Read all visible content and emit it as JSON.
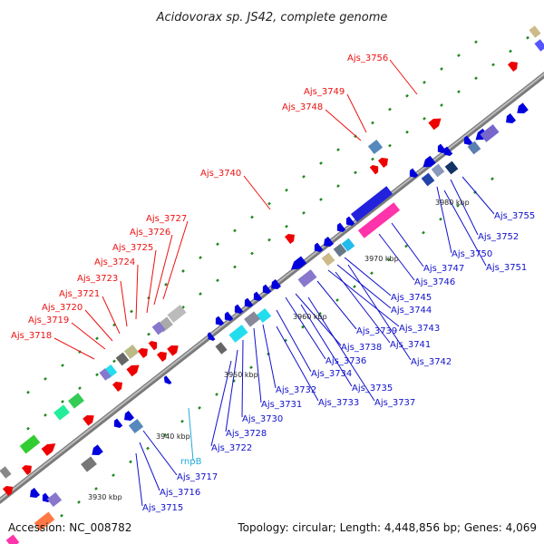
{
  "header": {
    "title": "Acidovorax sp. JS42, complete genome"
  },
  "footer": {
    "accession": "Accession: NC_008782",
    "summary": "Topology: circular; Length: 4,448,856 bp; Genes: 4,069"
  },
  "scale_labels": [
    "3930 kbp",
    "3940 kbp",
    "3950 kbp",
    "3960 kbp",
    "3970 kbp",
    "3980 kbp"
  ],
  "red_labels": [
    "Ajs_3756",
    "Ajs_3749",
    "Ajs_3748",
    "Ajs_3740",
    "Ajs_3727",
    "Ajs_3726",
    "Ajs_3725",
    "Ajs_3724",
    "Ajs_3723",
    "Ajs_3721",
    "Ajs_3720",
    "Ajs_3719",
    "Ajs_3718"
  ],
  "blue_labels": [
    "Ajs_3755",
    "Ajs_3752",
    "Ajs_3750",
    "Ajs_3751",
    "Ajs_3747",
    "Ajs_3746",
    "Ajs_3745",
    "Ajs_3744",
    "Ajs_3743",
    "Ajs_3739",
    "Ajs_3741",
    "Ajs_3738",
    "Ajs_3742",
    "Ajs_3736",
    "Ajs_3734",
    "Ajs_3735",
    "Ajs_3732",
    "Ajs_3733",
    "Ajs_3737",
    "Ajs_3731",
    "Ajs_3730",
    "Ajs_3728",
    "Ajs_3722",
    "Ajs_3717",
    "Ajs_3716",
    "Ajs_3715"
  ],
  "cyan_labels": [
    "rnpB"
  ],
  "colors": {
    "forward_gene": "#ee0000",
    "reverse_gene": "#0000dd",
    "rna_gene": "#22bbee",
    "backbone": "#888888",
    "tick": "#228822"
  }
}
